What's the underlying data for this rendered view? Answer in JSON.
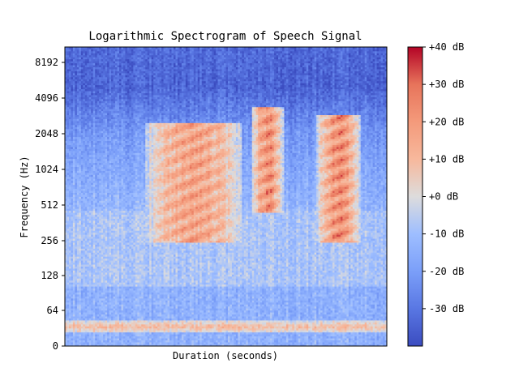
{
  "chart_data": {
    "type": "heatmap",
    "title": "Logarithmic Spectrogram of Speech Signal",
    "xlabel": "Duration (seconds)",
    "ylabel": "Frequency (Hz)",
    "y_scale": "log2",
    "y_ticks": [
      "0",
      "64",
      "128",
      "256",
      "512",
      "1024",
      "2048",
      "4096",
      "8192"
    ],
    "x_ticks": [],
    "colormap": "coolwarm",
    "colorbar": {
      "range_db": [
        -40,
        40
      ],
      "ticks": [
        "-30 dB",
        "-20 dB",
        "-10 dB",
        "+0 dB",
        "+10 dB",
        "+20 dB",
        "+30 dB",
        "+40 dB"
      ]
    },
    "features": [
      {
        "kind": "band",
        "freq_hz": 35,
        "level_db": 10,
        "note": "low-frequency hum across full duration"
      },
      {
        "kind": "formant",
        "t": [
          0.25,
          0.55
        ],
        "freq_hz": [
          250,
          2500
        ],
        "level_db": 25
      },
      {
        "kind": "formant",
        "t": [
          0.58,
          0.68
        ],
        "freq_hz": [
          450,
          3500
        ],
        "level_db": 30
      },
      {
        "kind": "formant",
        "t": [
          0.78,
          0.92
        ],
        "freq_hz": [
          250,
          3000
        ],
        "level_db": 30
      },
      {
        "kind": "floor",
        "freq_hz": [
          5000,
          11000
        ],
        "level_db": -35,
        "note": "quiet high band"
      }
    ]
  }
}
